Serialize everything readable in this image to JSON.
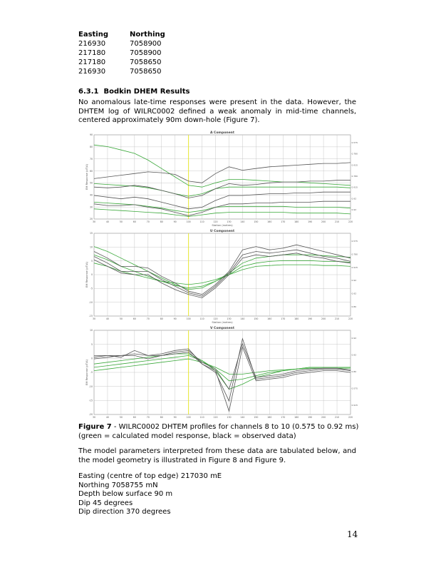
{
  "coords": {
    "header_easting": "Easting",
    "header_northing": "Northing",
    "rows": [
      [
        "216930",
        "7058900"
      ],
      [
        "217180",
        "7058900"
      ],
      [
        "217180",
        "7058650"
      ],
      [
        "216930",
        "7058650"
      ]
    ]
  },
  "section": {
    "number": "6.3.1",
    "title": "Bodkin DHEM Results"
  },
  "para1": "No anomalous late-time responses were present in the data.  However, the DHTEM log of WILRC0002 defined a weak anomaly in mid-time channels, centered approximately 90m down-hole (Figure 7).",
  "figure": {
    "panels": [
      {
        "title": "A Component",
        "xlabel": "Station (metres)",
        "ylabel": "EM Response (pT/A)",
        "yticks": [
          "90",
          "80",
          "70",
          "60",
          "50",
          "40",
          "30",
          "20"
        ],
        "xticks": [
          "30",
          "40",
          "50",
          "60",
          "70",
          "80",
          "90",
          "100",
          "110",
          "120",
          "130",
          "140",
          "150",
          "160",
          "170",
          "180",
          "190",
          "200",
          "210",
          "220"
        ],
        "end_labels": [
          "0.575",
          "0.780",
          "0.915",
          "0.780",
          "0.915",
          "0.92",
          "0.92"
        ]
      },
      {
        "title": "U Component",
        "xlabel": "Station (metres)",
        "ylabel": "EM Response (pT/A)",
        "yticks": [
          "15",
          "10",
          "5",
          "0",
          "-5",
          "-10",
          "-15"
        ],
        "xticks": [
          "30",
          "40",
          "50",
          "60",
          "70",
          "80",
          "90",
          "100",
          "110",
          "120",
          "130",
          "140",
          "150",
          "160",
          "170",
          "180",
          "190",
          "200",
          "210",
          "220"
        ],
        "end_labels": [
          "0.575",
          "0.780",
          "0.915",
          "0.92",
          "0.92",
          "0.80"
        ]
      },
      {
        "title": "V Component",
        "xlabel": "",
        "ylabel": "EM Response (pT/A)",
        "yticks": [
          "10",
          "5",
          "0",
          "-5",
          "-10",
          "-15",
          "-20"
        ],
        "xticks": [
          "30",
          "40",
          "50",
          "60",
          "70",
          "80",
          "90",
          "100",
          "110",
          "120",
          "130",
          "140",
          "150",
          "160",
          "170",
          "180",
          "190",
          "200",
          "210",
          "220"
        ],
        "end_labels": [
          "0.92",
          "0.92",
          "0.80",
          "0.575",
          "0.915"
        ]
      }
    ]
  },
  "caption": {
    "label": "Figure 7",
    "text": " - WILRC0002 DHTEM profiles for channels 8 to 10 (0.575 to 0.92 ms) (green = calculated model response, black = observed data)"
  },
  "para2": "The model parameters interpreted from these data are tabulated below, and the model geometry is illustrated in Figure 8 and Figure 9.",
  "params": [
    "Easting (centre of top edge) 217030 mE",
    "Northing 7058755 mN",
    "Depth below surface 90 m",
    "Dip 45 degrees",
    "Dip direction 370 degrees"
  ],
  "page_number": "14",
  "colors": {
    "observed": "#555555",
    "model": "#3aa83a",
    "marker": "#e8e830",
    "grid": "#bbbbbb"
  }
}
